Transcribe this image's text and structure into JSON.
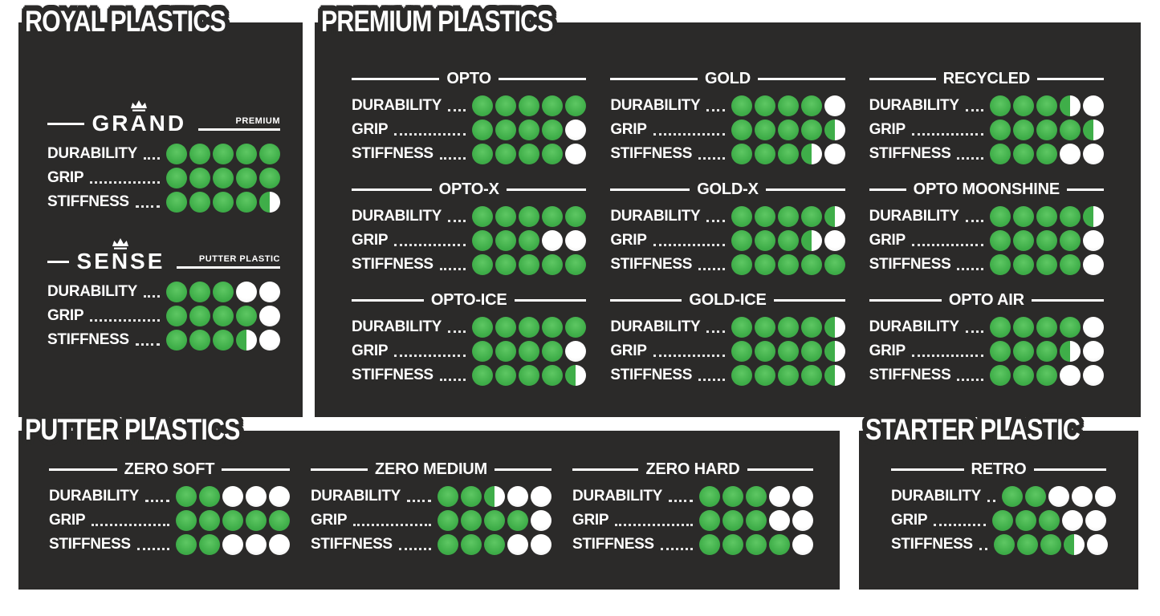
{
  "page": {
    "background": "#ffffff"
  },
  "colors": {
    "panel_background": "#2b2a29",
    "text": "#ffffff",
    "dot_full": "#3fae49",
    "dot_half": "#3fae49",
    "dot_empty": "#ffffff"
  },
  "chart_data": {
    "type": "table",
    "title": "Disc golf plastic ratings",
    "categories": [
      "DURABILITY",
      "GRIP",
      "STIFFNESS"
    ],
    "value_range": [
      0,
      5
    ],
    "dot_scale": 5,
    "groups": [
      {
        "group": "ROYAL PLASTICS",
        "series": [
          {
            "name": "GRAND",
            "tag": "PREMIUM",
            "crown": true,
            "values": [
              5,
              5,
              4.5
            ]
          },
          {
            "name": "SENSE",
            "tag": "PUTTER PLASTIC",
            "crown": true,
            "values": [
              3,
              4,
              3.5
            ]
          }
        ]
      },
      {
        "group": "PREMIUM PLASTICS",
        "series": [
          {
            "name": "OPTO",
            "values": [
              5,
              4,
              4
            ]
          },
          {
            "name": "GOLD",
            "values": [
              4,
              4.5,
              3.5
            ]
          },
          {
            "name": "RECYCLED",
            "values": [
              3.5,
              4.5,
              3
            ]
          },
          {
            "name": "OPTO-X",
            "values": [
              5,
              3,
              5
            ]
          },
          {
            "name": "GOLD-X",
            "values": [
              4.5,
              3.5,
              5
            ]
          },
          {
            "name": "OPTO MOONSHINE",
            "values": [
              4.5,
              4,
              4
            ]
          },
          {
            "name": "OPTO-ICE",
            "values": [
              5,
              4,
              4.5
            ]
          },
          {
            "name": "GOLD-ICE",
            "values": [
              4.5,
              4.5,
              4.5
            ]
          },
          {
            "name": "OPTO AIR",
            "values": [
              4,
              3.5,
              3
            ]
          }
        ]
      },
      {
        "group": "PUTTER PLASTICS",
        "series": [
          {
            "name": "ZERO SOFT",
            "values": [
              2,
              5,
              2
            ]
          },
          {
            "name": "ZERO MEDIUM",
            "values": [
              2.5,
              4,
              3
            ]
          },
          {
            "name": "ZERO HARD",
            "values": [
              3,
              3,
              4
            ]
          }
        ]
      },
      {
        "group": "STARTER PLASTIC",
        "series": [
          {
            "name": "RETRO",
            "values": [
              2,
              3,
              3.5
            ]
          }
        ]
      }
    ]
  }
}
